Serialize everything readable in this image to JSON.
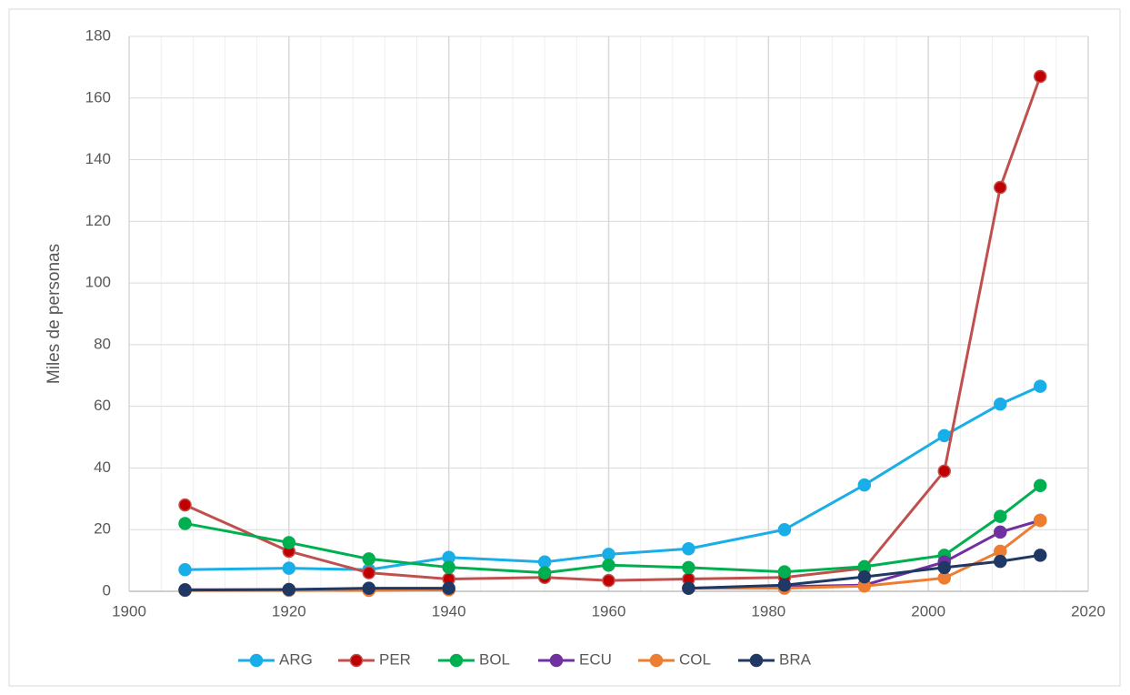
{
  "chart_data": {
    "type": "line",
    "ylabel": "Miles de personas",
    "x": [
      1907,
      1920,
      1930,
      1940,
      1952,
      1960,
      1970,
      1982,
      1992,
      2002,
      2009,
      2014
    ],
    "series": [
      {
        "name": "ARG",
        "color": "#1aaee8",
        "values": [
          7,
          7.5,
          7,
          11,
          9.5,
          12,
          13.8,
          20,
          34.5,
          50.5,
          60.7,
          66.5
        ]
      },
      {
        "name": "PER",
        "color": "#c0504d",
        "marker_color": "#c00000",
        "values": [
          28,
          13,
          6,
          4,
          4.5,
          3.5,
          4,
          4.5,
          7.5,
          39,
          131,
          167
        ]
      },
      {
        "name": "BOL",
        "color": "#00b050",
        "values": [
          22,
          15.8,
          10.5,
          7.8,
          6,
          8.5,
          7.7,
          6.3,
          8,
          11.7,
          24.3,
          34.3
        ]
      },
      {
        "name": "ECU",
        "color": "#7030a0",
        "values": [
          0.5,
          0.5,
          0.5,
          0.5,
          null,
          null,
          1,
          1.5,
          2,
          9.5,
          19.2,
          23
        ]
      },
      {
        "name": "COL",
        "color": "#ed7d31",
        "values": [
          0.3,
          0.3,
          0.3,
          0.5,
          null,
          null,
          1,
          1,
          1.7,
          4.3,
          13,
          23
        ]
      },
      {
        "name": "BRA",
        "color": "#1f3864",
        "values": [
          0.4,
          0.6,
          1,
          1,
          null,
          null,
          1,
          2,
          4.7,
          7.7,
          9.7,
          11.7
        ]
      }
    ],
    "xlim": [
      1900,
      2020
    ],
    "xticks": [
      1900,
      1920,
      1940,
      1960,
      1980,
      2000,
      2020
    ],
    "x_minor_step": 4,
    "ylim": [
      0,
      180
    ],
    "yticks": [
      0,
      20,
      40,
      60,
      80,
      100,
      120,
      140,
      160,
      180
    ],
    "grid": true,
    "legend": "bottom"
  }
}
